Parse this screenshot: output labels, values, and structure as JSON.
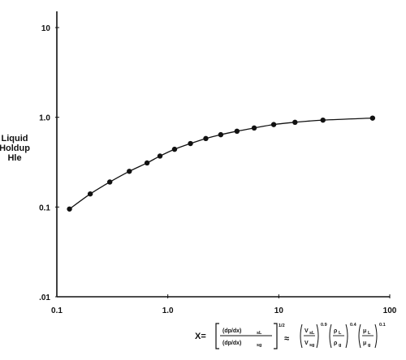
{
  "chart_data": {
    "type": "line",
    "title": "",
    "xlabel": "",
    "ylabel": [
      "Liquid",
      "Holdup",
      "Hle"
    ],
    "xscale": "log",
    "yscale": "log",
    "xlim": [
      0.1,
      100
    ],
    "ylim": [
      0.01,
      10
    ],
    "x_ticks": [
      {
        "value": 0.1,
        "label": "0.1"
      },
      {
        "value": 1,
        "label": "1.0"
      },
      {
        "value": 10,
        "label": "10"
      },
      {
        "value": 100,
        "label": "100"
      }
    ],
    "y_ticks": [
      {
        "value": 0.01,
        "label": ".01"
      },
      {
        "value": 0.1,
        "label": "0.1"
      },
      {
        "value": 1,
        "label": "1.0"
      },
      {
        "value": 10,
        "label": "10"
      }
    ],
    "grid": false,
    "series": [
      {
        "name": "",
        "markers": true,
        "x": [
          0.13,
          0.2,
          0.3,
          0.45,
          0.65,
          0.85,
          1.15,
          1.6,
          2.2,
          3.0,
          4.2,
          6.0,
          9.0,
          14.0,
          25.0,
          70.0
        ],
        "y": [
          0.095,
          0.14,
          0.19,
          0.25,
          0.31,
          0.37,
          0.44,
          0.51,
          0.58,
          0.64,
          0.7,
          0.76,
          0.83,
          0.88,
          0.93,
          0.98
        ]
      }
    ],
    "formula": {
      "lhs": "X=",
      "frac_num": "(dp/dx)",
      "frac_num_sub": "sL",
      "frac_den": "(dp/dx)",
      "frac_den_sub": "sg",
      "bracket_exp": "1/2",
      "approx": "≈",
      "t1_num": "V",
      "t1_num_sub": "sL",
      "t1_den": "V",
      "t1_den_sub": "sg",
      "t1_exp": "0.9",
      "t2_num": "ρ",
      "t2_num_sub": "L",
      "t2_den": "ρ",
      "t2_den_sub": "g",
      "t2_exp": "0.4",
      "t3_num": "μ",
      "t3_num_sub": "L",
      "t3_den": "μ",
      "t3_den_sub": "g",
      "t3_exp": "0.1"
    }
  }
}
